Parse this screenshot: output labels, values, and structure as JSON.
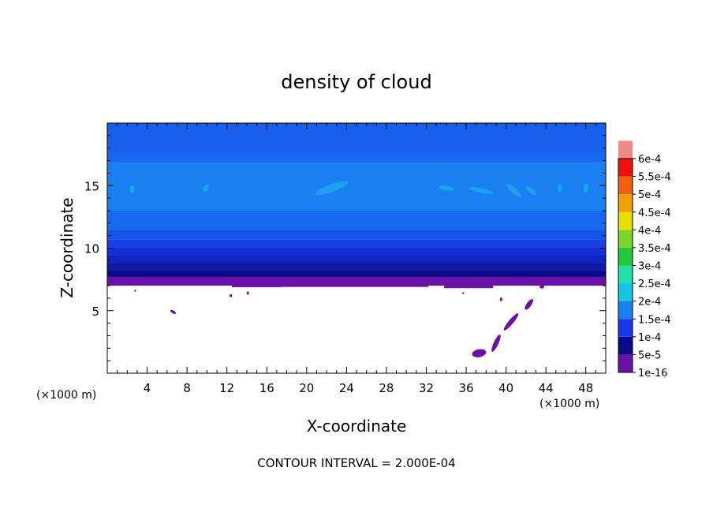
{
  "chart_data": {
    "type": "heatmap",
    "title": "density of cloud",
    "xlabel": "X-coordinate",
    "ylabel": "Z-coordinate",
    "x_unit_left": "(×1000 m)",
    "x_unit_right": "(×1000 m)",
    "xlim": [
      0,
      50
    ],
    "ylim": [
      0,
      20
    ],
    "x_ticks": [
      4,
      8,
      12,
      16,
      20,
      24,
      28,
      32,
      36,
      40,
      44,
      48
    ],
    "y_ticks": [
      5,
      10,
      15
    ],
    "footer": "CONTOUR INTERVAL = 2.000E-04",
    "colorbar": {
      "levels": [
        "1e-16",
        "5e-5",
        "1e-4",
        "1.5e-4",
        "2e-4",
        "2.5e-4",
        "3e-4",
        "3.5e-4",
        "4e-4",
        "4.5e-4",
        "5e-4",
        "5.5e-4",
        "6e-4"
      ],
      "colors": [
        "#6a0fa8",
        "#0b0b8a",
        "#1638e8",
        "#1a7ff0",
        "#17c6e4",
        "#1de3a8",
        "#22c93a",
        "#7ad62a",
        "#e6e000",
        "#f0a000",
        "#f06010",
        "#f01010",
        "#f28a8a"
      ]
    },
    "bands": [
      {
        "z_min": 7.0,
        "z_max": 7.7,
        "color": "#6a0fa8"
      },
      {
        "z_min": 7.7,
        "z_max": 8.2,
        "color": "#0b0b8a"
      },
      {
        "z_min": 8.2,
        "z_max": 8.8,
        "color": "#0e1aa4"
      },
      {
        "z_min": 8.8,
        "z_max": 9.4,
        "color": "#1024c0"
      },
      {
        "z_min": 9.4,
        "z_max": 10.0,
        "color": "#132fd2"
      },
      {
        "z_min": 10.0,
        "z_max": 10.7,
        "color": "#1540e2"
      },
      {
        "z_min": 10.7,
        "z_max": 11.5,
        "color": "#1556ea"
      },
      {
        "z_min": 11.5,
        "z_max": 13.0,
        "color": "#176af0"
      },
      {
        "z_min": 13.0,
        "z_max": 16.8,
        "color": "#1a80f2"
      },
      {
        "z_min": 16.8,
        "z_max": 17.6,
        "color": "#176af0"
      },
      {
        "z_min": 17.6,
        "z_max": 20.0,
        "color": "#1660ec"
      }
    ],
    "patches_low": [
      {
        "x": 17.5,
        "z": 6.9,
        "x2": 32.2,
        "z2": 7.05
      },
      {
        "x": 12.5,
        "z": 6.9,
        "x2": 17.5,
        "z2": 7.0
      },
      {
        "x": 33.8,
        "z": 6.8,
        "x2": 38.7,
        "z2": 7.0
      }
    ]
  }
}
